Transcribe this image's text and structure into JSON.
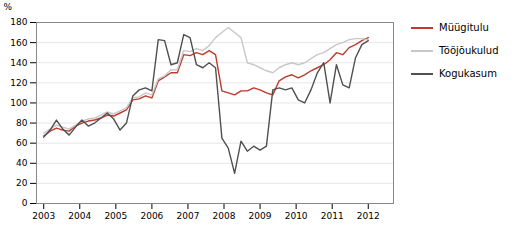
{
  "chart_data": {
    "type": "line",
    "ylabel": "%",
    "x": [
      2003,
      2003.17647,
      2003.35294,
      2003.52941,
      2003.70588,
      2003.88235,
      2004.05882,
      2004.23529,
      2004.41176,
      2004.58824,
      2004.76471,
      2004.94118,
      2005.11765,
      2005.29412,
      2005.47059,
      2005.64706,
      2005.82353,
      2006,
      2006.17647,
      2006.35294,
      2006.52941,
      2006.70588,
      2006.88235,
      2007.05882,
      2007.23529,
      2007.41176,
      2007.58824,
      2007.76471,
      2007.94118,
      2008.11765,
      2008.29412,
      2008.47059,
      2008.64706,
      2008.82353,
      2009,
      2009.17647,
      2009.35294,
      2009.52941,
      2009.70588,
      2009.88235,
      2010.05882,
      2010.23529,
      2010.41176,
      2010.58824,
      2010.76471,
      2010.94118,
      2011.11765,
      2011.29412,
      2011.47059,
      2011.64706,
      2011.82353,
      2012
    ],
    "series": [
      {
        "name": "Müügitulu",
        "color": "#c0392b",
        "values": [
          67,
          72,
          75,
          73,
          72,
          77,
          80,
          82,
          83,
          85,
          88,
          87,
          90,
          93,
          103,
          104,
          107,
          105,
          122,
          126,
          130,
          130,
          148,
          147,
          150,
          148,
          152,
          148,
          112,
          110,
          108,
          112,
          112,
          115,
          113,
          110,
          108,
          122,
          126,
          128,
          125,
          128,
          132,
          135,
          138,
          143,
          150,
          148,
          155,
          158,
          162,
          165
        ]
      },
      {
        "name": "Tööjõukulud",
        "color": "#c8c8c8",
        "values": [
          70,
          74,
          78,
          76,
          74,
          78,
          82,
          84,
          85,
          88,
          91,
          89,
          92,
          95,
          105,
          106,
          110,
          108,
          124,
          127,
          133,
          133,
          152,
          151,
          154,
          152,
          157,
          165,
          170,
          175,
          170,
          165,
          140,
          138,
          135,
          132,
          130,
          135,
          138,
          140,
          138,
          140,
          144,
          148,
          150,
          154,
          158,
          160,
          163,
          164,
          164,
          163
        ]
      },
      {
        "name": "Kogukasum",
        "color": "#505050",
        "values": [
          66,
          73,
          83,
          74,
          68,
          76,
          83,
          77,
          80,
          85,
          90,
          84,
          73,
          80,
          107,
          113,
          115,
          112,
          163,
          162,
          138,
          140,
          168,
          165,
          138,
          135,
          140,
          135,
          65,
          55,
          30,
          62,
          52,
          57,
          53,
          57,
          113,
          115,
          113,
          115,
          103,
          100,
          113,
          130,
          140,
          100,
          138,
          118,
          115,
          145,
          158,
          162
        ]
      }
    ],
    "xlim": [
      2002.8,
      2012.7
    ],
    "xticks": [
      2003,
      2004,
      2005,
      2006,
      2007,
      2008,
      2009,
      2010,
      2011,
      2012
    ],
    "ylim": [
      0,
      180
    ],
    "yticks": [
      0,
      20,
      40,
      60,
      80,
      100,
      120,
      140,
      160,
      180
    ],
    "grid": "y",
    "legend": "right"
  }
}
